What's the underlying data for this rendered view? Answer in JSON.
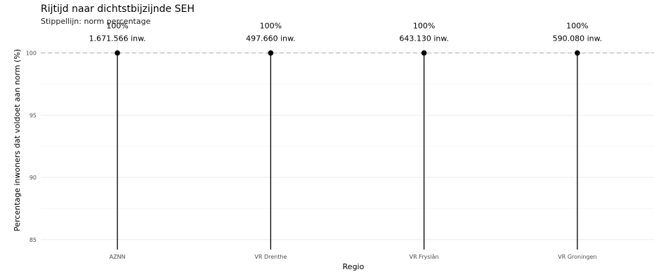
{
  "chart_data": {
    "type": "lollipop",
    "title": "Rijtijd naar dichtstbijzijnde SEH",
    "subtitle": "Stippellijn: norm percentage",
    "xlabel": "Regio",
    "ylabel": "Percentage inwoners dat voldoet aan norm (%)",
    "ylim": [
      84.2,
      102
    ],
    "yticks": [
      85,
      90,
      95,
      100
    ],
    "norm_line": 100,
    "grid": true,
    "categories": [
      "AZNN",
      "VR Drenthe",
      "VR Fryslân",
      "VR Groningen"
    ],
    "values": [
      100,
      100,
      100,
      100
    ],
    "labels_pct": [
      "100%",
      "100%",
      "100%",
      "100%"
    ],
    "labels_inw": [
      "1.671.566 inw.",
      "497.660 inw.",
      "643.130 inw.",
      "590.080 inw."
    ],
    "colors": {
      "line": "#000000",
      "norm": "#bdbdbd",
      "grid": "#ebebeb"
    }
  }
}
